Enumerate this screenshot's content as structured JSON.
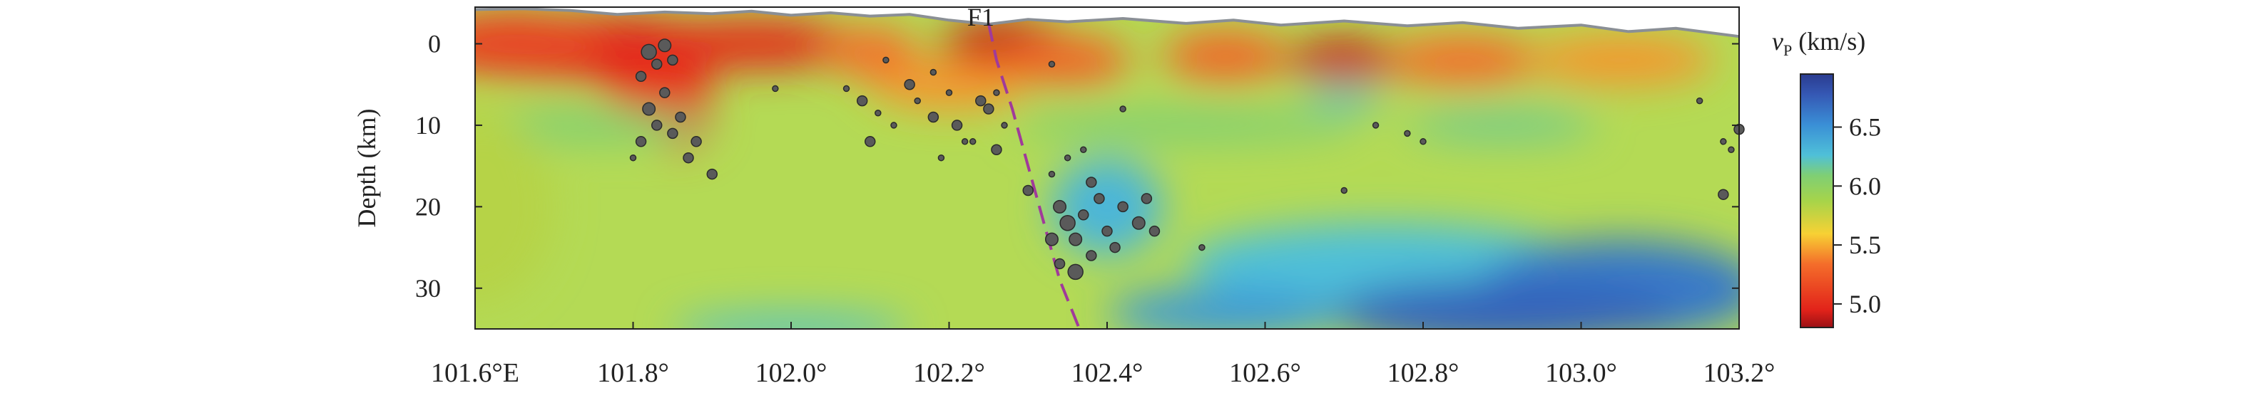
{
  "chart_data": {
    "type": "heatmap",
    "title": "",
    "xlabel": "",
    "ylabel": "Depth (km)",
    "x_range": [
      101.6,
      103.2
    ],
    "y_range": [
      -4.5,
      35
    ],
    "x_ticks": [
      {
        "value": 101.6,
        "label": "101.6°E"
      },
      {
        "value": 101.8,
        "label": "101.8°"
      },
      {
        "value": 102.0,
        "label": "102.0°"
      },
      {
        "value": 102.2,
        "label": "102.2°"
      },
      {
        "value": 102.4,
        "label": "102.4°"
      },
      {
        "value": 102.6,
        "label": "102.6°"
      },
      {
        "value": 102.8,
        "label": "102.8°"
      },
      {
        "value": 103.0,
        "label": "103.0°"
      },
      {
        "value": 103.2,
        "label": "103.2°"
      }
    ],
    "y_ticks": [
      {
        "value": 0,
        "label": "0"
      },
      {
        "value": 10,
        "label": "10"
      },
      {
        "value": 20,
        "label": "20"
      },
      {
        "value": 30,
        "label": "30"
      }
    ],
    "colorbar": {
      "label_symbol": "v",
      "label_subscript": "P",
      "label_unit": " (km/s)",
      "range": [
        4.8,
        6.95
      ],
      "ticks": [
        {
          "value": 5.0,
          "label": "5.0"
        },
        {
          "value": 5.5,
          "label": "5.5"
        },
        {
          "value": 6.0,
          "label": "6.0"
        },
        {
          "value": 6.5,
          "label": "6.5"
        }
      ]
    },
    "fault": {
      "label": "F1",
      "path": [
        [
          102.25,
          -2.5
        ],
        [
          102.26,
          2
        ],
        [
          102.28,
          8
        ],
        [
          102.3,
          15
        ],
        [
          102.32,
          22
        ],
        [
          102.34,
          29
        ],
        [
          102.365,
          35
        ]
      ]
    },
    "topography": [
      [
        101.6,
        -4.2
      ],
      [
        101.66,
        -4.3
      ],
      [
        101.72,
        -4.1
      ],
      [
        101.78,
        -3.6
      ],
      [
        101.84,
        -3.9
      ],
      [
        101.9,
        -3.7
      ],
      [
        101.95,
        -4.0
      ],
      [
        102.0,
        -3.5
      ],
      [
        102.05,
        -3.8
      ],
      [
        102.1,
        -3.4
      ],
      [
        102.15,
        -3.6
      ],
      [
        102.2,
        -2.9
      ],
      [
        102.25,
        -2.4
      ],
      [
        102.3,
        -3.0
      ],
      [
        102.35,
        -2.7
      ],
      [
        102.42,
        -3.1
      ],
      [
        102.5,
        -2.5
      ],
      [
        102.56,
        -2.9
      ],
      [
        102.62,
        -2.3
      ],
      [
        102.7,
        -2.8
      ],
      [
        102.78,
        -2.2
      ],
      [
        102.85,
        -2.6
      ],
      [
        102.92,
        -1.9
      ],
      [
        103.0,
        -2.3
      ],
      [
        103.06,
        -1.5
      ],
      [
        103.12,
        -1.9
      ],
      [
        103.2,
        -0.9
      ]
    ],
    "velocity_anomalies": [
      {
        "x": 101.75,
        "y": 0.5,
        "v": 4.95,
        "rx": 0.2,
        "ry": 4
      },
      {
        "x": 101.65,
        "y": 0,
        "v": 5.1,
        "rx": 0.12,
        "ry": 4
      },
      {
        "x": 101.95,
        "y": 0,
        "v": 5.0,
        "rx": 0.14,
        "ry": 3
      },
      {
        "x": 101.86,
        "y": 9,
        "v": 5.0,
        "rx": 0.04,
        "ry": 4
      },
      {
        "x": 101.83,
        "y": 5,
        "v": 5.05,
        "rx": 0.07,
        "ry": 3
      },
      {
        "x": 102.27,
        "y": 0,
        "v": 4.9,
        "rx": 0.08,
        "ry": 3
      },
      {
        "x": 102.2,
        "y": 5,
        "v": 5.45,
        "rx": 0.1,
        "ry": 3
      },
      {
        "x": 102.1,
        "y": 1,
        "v": 5.35,
        "rx": 0.06,
        "ry": 3
      },
      {
        "x": 102.35,
        "y": 2,
        "v": 5.3,
        "rx": 0.08,
        "ry": 3
      },
      {
        "x": 102.55,
        "y": 1.5,
        "v": 5.3,
        "rx": 0.08,
        "ry": 3
      },
      {
        "x": 102.7,
        "y": 2,
        "v": 4.9,
        "rx": 0.07,
        "ry": 2.5
      },
      {
        "x": 102.85,
        "y": 2,
        "v": 5.35,
        "rx": 0.1,
        "ry": 3
      },
      {
        "x": 103.05,
        "y": 2,
        "v": 5.45,
        "rx": 0.12,
        "ry": 3
      },
      {
        "x": 102.7,
        "y": 6.5,
        "v": 6.2,
        "rx": 0.05,
        "ry": 1.5
      },
      {
        "x": 101.75,
        "y": 10,
        "v": 6.05,
        "rx": 0.15,
        "ry": 2
      },
      {
        "x": 102.5,
        "y": 10,
        "v": 6.05,
        "rx": 0.22,
        "ry": 2
      },
      {
        "x": 102.9,
        "y": 10,
        "v": 6.1,
        "rx": 0.12,
        "ry": 2
      },
      {
        "x": 102.4,
        "y": 20,
        "v": 6.3,
        "rx": 0.07,
        "ry": 6
      },
      {
        "x": 102.75,
        "y": 27,
        "v": 6.25,
        "rx": 0.25,
        "ry": 5
      },
      {
        "x": 103.05,
        "y": 30,
        "v": 6.6,
        "rx": 0.18,
        "ry": 6
      },
      {
        "x": 102.9,
        "y": 33,
        "v": 6.7,
        "rx": 0.22,
        "ry": 4
      },
      {
        "x": 102.55,
        "y": 33,
        "v": 6.45,
        "rx": 0.15,
        "ry": 3
      },
      {
        "x": 102.0,
        "y": 35,
        "v": 6.2,
        "rx": 0.15,
        "ry": 2
      },
      {
        "x": 101.6,
        "y": 20,
        "v": 5.8,
        "rx": 0.1,
        "ry": 12
      }
    ],
    "earthquakes": [
      [
        101.82,
        1.0,
        3
      ],
      [
        101.84,
        0.2,
        2.5
      ],
      [
        101.83,
        2.5,
        2
      ],
      [
        101.81,
        4,
        2
      ],
      [
        101.84,
        6,
        2
      ],
      [
        101.82,
        8,
        2.5
      ],
      [
        101.83,
        10,
        2
      ],
      [
        101.81,
        12,
        2
      ],
      [
        101.85,
        11,
        2
      ],
      [
        101.86,
        9,
        2
      ],
      [
        101.88,
        12,
        2
      ],
      [
        101.87,
        14,
        2
      ],
      [
        101.9,
        16,
        2
      ],
      [
        101.85,
        2,
        2
      ],
      [
        101.8,
        14,
        1.5
      ],
      [
        101.98,
        5.5,
        1.5
      ],
      [
        102.07,
        5.5,
        1.5
      ],
      [
        102.09,
        7,
        2
      ],
      [
        102.11,
        8.5,
        1.5
      ],
      [
        102.13,
        10,
        1.5
      ],
      [
        102.1,
        12,
        2
      ],
      [
        102.12,
        2,
        1.5
      ],
      [
        102.15,
        5,
        2
      ],
      [
        102.16,
        7,
        1.5
      ],
      [
        102.18,
        3.5,
        1.5
      ],
      [
        102.18,
        9,
        2
      ],
      [
        102.2,
        6,
        1.5
      ],
      [
        102.21,
        10,
        2
      ],
      [
        102.22,
        12,
        1.5
      ],
      [
        102.19,
        14,
        1.5
      ],
      [
        102.24,
        7,
        2
      ],
      [
        102.25,
        8,
        2
      ],
      [
        102.26,
        6,
        1.5
      ],
      [
        102.27,
        10,
        1.5
      ],
      [
        102.23,
        12,
        1.5
      ],
      [
        102.26,
        13,
        2
      ],
      [
        102.3,
        18,
        2
      ],
      [
        102.33,
        16,
        1.5
      ],
      [
        102.34,
        20,
        2.5
      ],
      [
        102.35,
        22,
        3
      ],
      [
        102.36,
        24,
        2.5
      ],
      [
        102.37,
        21,
        2
      ],
      [
        102.38,
        26,
        2
      ],
      [
        102.36,
        28,
        3
      ],
      [
        102.34,
        27,
        2
      ],
      [
        102.39,
        19,
        2
      ],
      [
        102.4,
        23,
        2
      ],
      [
        102.41,
        25,
        2
      ],
      [
        102.42,
        20,
        2
      ],
      [
        102.44,
        22,
        2.5
      ],
      [
        102.45,
        19,
        2
      ],
      [
        102.46,
        23,
        2
      ],
      [
        102.38,
        17,
        2
      ],
      [
        102.33,
        24,
        2.5
      ],
      [
        102.35,
        14,
        1.5
      ],
      [
        102.37,
        13,
        1.5
      ],
      [
        102.33,
        2.5,
        1.5
      ],
      [
        102.74,
        10,
        1.5
      ],
      [
        102.78,
        11,
        1.5
      ],
      [
        102.8,
        12,
        1.5
      ],
      [
        102.7,
        18,
        1.5
      ],
      [
        103.15,
        7,
        1.5
      ],
      [
        103.18,
        12,
        1.5
      ],
      [
        103.18,
        18.5,
        2
      ],
      [
        103.2,
        10.5,
        2
      ],
      [
        103.19,
        13,
        1.5
      ],
      [
        102.52,
        25,
        1.5
      ],
      [
        102.42,
        8,
        1.5
      ]
    ]
  }
}
